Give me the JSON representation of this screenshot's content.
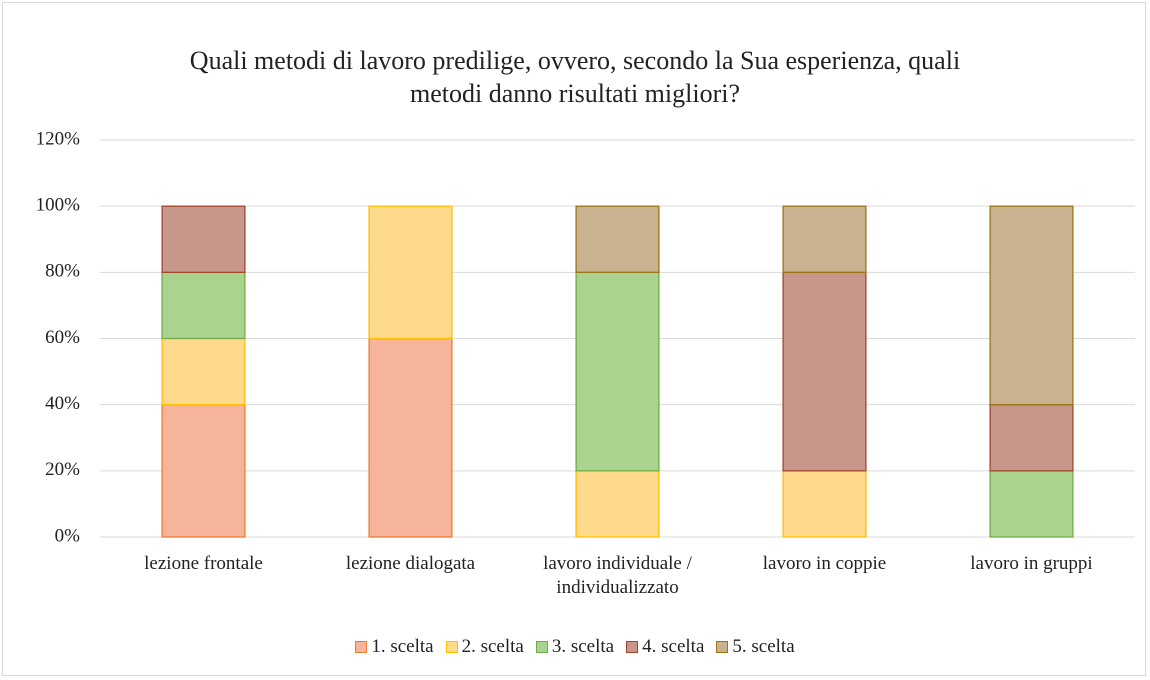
{
  "chart_data": {
    "type": "stacked_bar",
    "title": "Quali metodi di lavoro predilige, ovvero, secondo la Sua esperienza, quali metodi danno risultati migliori?",
    "categories": [
      "lezione frontale",
      "lezione dialogata",
      "lavoro individuale / individualizzato",
      "lavoro in coppie",
      "lavoro in gruppi"
    ],
    "series": [
      {
        "name": "1. scelta",
        "color": "#f6b49a",
        "edgecolor": "#ed7d31",
        "values": [
          40,
          60,
          0,
          0,
          0
        ]
      },
      {
        "name": "2. scelta",
        "color": "#ffda8c",
        "edgecolor": "#ffc000",
        "values": [
          20,
          40,
          20,
          20,
          0
        ]
      },
      {
        "name": "3. scelta",
        "color": "#a9d38f",
        "edgecolor": "#70ad47",
        "values": [
          20,
          0,
          60,
          0,
          20
        ]
      },
      {
        "name": "4. scelta",
        "color": "#c8978c",
        "edgecolor": "#a5442a",
        "values": [
          20,
          0,
          0,
          60,
          20
        ]
      },
      {
        "name": "5. scelta",
        "color": "#c9b28f",
        "edgecolor": "#9c7416",
        "values": [
          0,
          0,
          20,
          20,
          60
        ]
      }
    ],
    "ylim": [
      0,
      120
    ],
    "yticks": [
      {
        "value": 0,
        "label": "0%"
      },
      {
        "value": 20,
        "label": "20%"
      },
      {
        "value": 40,
        "label": "40%"
      },
      {
        "value": 60,
        "label": "60%"
      },
      {
        "value": 80,
        "label": "80%"
      },
      {
        "value": 100,
        "label": "100%"
      },
      {
        "value": 120,
        "label": "120%"
      }
    ],
    "grid": true,
    "legend": "bottom"
  }
}
